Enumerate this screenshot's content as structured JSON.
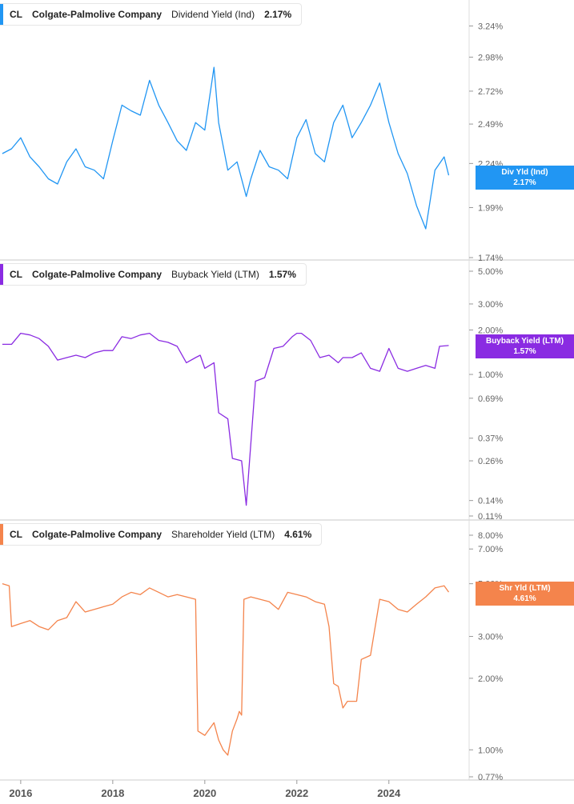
{
  "colors": {
    "dividend": "#2196f3",
    "buyback": "#8a2be2",
    "shareholder": "#f4844c",
    "axis": "#666666",
    "separator": "#c8c8c8"
  },
  "panels": [
    {
      "ticker": "CL",
      "company": "Colgate-Palmolive Company",
      "metric": "Dividend Yield (Ind)",
      "value": "2.17%",
      "badge_label": "Div Yld (Ind)",
      "badge_value": "2.17%",
      "color_key": "dividend"
    },
    {
      "ticker": "CL",
      "company": "Colgate-Palmolive Company",
      "metric": "Buyback Yield (LTM)",
      "value": "1.57%",
      "badge_label": "Buyback Yield (LTM)",
      "badge_value": "1.57%",
      "color_key": "buyback"
    },
    {
      "ticker": "CL",
      "company": "Colgate-Palmolive Company",
      "metric": "Shareholder Yield (LTM)",
      "value": "4.61%",
      "badge_label": "Shr Yld (LTM)",
      "badge_value": "4.61%",
      "color_key": "shareholder"
    }
  ],
  "chart_data": [
    {
      "type": "line",
      "series": [
        {
          "name": "Dividend Yield (Ind)",
          "x": [
            2015.6,
            2015.8,
            2016.0,
            2016.2,
            2016.4,
            2016.6,
            2016.8,
            2017.0,
            2017.2,
            2017.4,
            2017.6,
            2017.8,
            2018.0,
            2018.2,
            2018.4,
            2018.6,
            2018.8,
            2019.0,
            2019.2,
            2019.4,
            2019.6,
            2019.8,
            2020.0,
            2020.2,
            2020.3,
            2020.5,
            2020.7,
            2020.9,
            2021.0,
            2021.2,
            2021.4,
            2021.6,
            2021.8,
            2022.0,
            2022.2,
            2022.4,
            2022.6,
            2022.8,
            2023.0,
            2023.2,
            2023.4,
            2023.6,
            2023.8,
            2024.0,
            2024.2,
            2024.4,
            2024.6,
            2024.8,
            2025.0,
            2025.2,
            2025.3
          ],
          "values": [
            2.3,
            2.33,
            2.4,
            2.28,
            2.22,
            2.15,
            2.12,
            2.25,
            2.33,
            2.22,
            2.2,
            2.15,
            2.38,
            2.62,
            2.58,
            2.55,
            2.8,
            2.62,
            2.5,
            2.38,
            2.32,
            2.5,
            2.45,
            2.9,
            2.5,
            2.2,
            2.25,
            2.05,
            2.15,
            2.32,
            2.22,
            2.2,
            2.15,
            2.4,
            2.52,
            2.3,
            2.25,
            2.5,
            2.62,
            2.4,
            2.5,
            2.62,
            2.78,
            2.5,
            2.3,
            2.18,
            2.0,
            1.88,
            2.2,
            2.28,
            2.17
          ]
        }
      ],
      "y_ticks": [
        "3.24%",
        "2.98%",
        "2.72%",
        "2.49%",
        "2.24%",
        "1.99%",
        "1.74%"
      ],
      "y_tick_values": [
        3.24,
        2.98,
        2.72,
        2.49,
        2.24,
        1.99,
        1.74
      ],
      "ylim": [
        1.74,
        3.4
      ],
      "scale": "log"
    },
    {
      "type": "line",
      "series": [
        {
          "name": "Buyback Yield (LTM)",
          "x": [
            2015.6,
            2015.8,
            2016.0,
            2016.2,
            2016.4,
            2016.6,
            2016.8,
            2017.0,
            2017.2,
            2017.4,
            2017.6,
            2017.8,
            2018.0,
            2018.2,
            2018.4,
            2018.6,
            2018.8,
            2019.0,
            2019.2,
            2019.4,
            2019.6,
            2019.8,
            2019.9,
            2020.0,
            2020.2,
            2020.3,
            2020.5,
            2020.6,
            2020.8,
            2020.9,
            2021.1,
            2021.3,
            2021.5,
            2021.7,
            2021.9,
            2022.0,
            2022.1,
            2022.3,
            2022.5,
            2022.7,
            2022.9,
            2023.0,
            2023.2,
            2023.4,
            2023.6,
            2023.8,
            2024.0,
            2024.2,
            2024.4,
            2024.6,
            2024.8,
            2025.0,
            2025.1,
            2025.3
          ],
          "values": [
            1.6,
            1.6,
            1.9,
            1.85,
            1.75,
            1.55,
            1.25,
            1.3,
            1.35,
            1.3,
            1.4,
            1.45,
            1.45,
            1.8,
            1.75,
            1.85,
            1.9,
            1.7,
            1.65,
            1.55,
            1.2,
            1.3,
            1.35,
            1.1,
            1.2,
            0.55,
            0.5,
            0.27,
            0.26,
            0.13,
            0.9,
            0.95,
            1.5,
            1.55,
            1.8,
            1.9,
            1.9,
            1.7,
            1.3,
            1.35,
            1.2,
            1.3,
            1.3,
            1.4,
            1.1,
            1.05,
            1.5,
            1.1,
            1.05,
            1.1,
            1.15,
            1.1,
            1.55,
            1.57
          ]
        }
      ],
      "y_ticks": [
        "5.00%",
        "3.00%",
        "2.00%",
        "1.00%",
        "0.69%",
        "0.37%",
        "0.26%",
        "0.14%",
        "0.11%"
      ],
      "y_tick_values": [
        5.0,
        3.0,
        2.0,
        1.0,
        0.69,
        0.37,
        0.26,
        0.14,
        0.11
      ],
      "ylim": [
        0.11,
        5.0
      ],
      "scale": "log"
    },
    {
      "type": "line",
      "series": [
        {
          "name": "Shareholder Yield (LTM)",
          "x": [
            2015.6,
            2015.75,
            2015.8,
            2016.0,
            2016.2,
            2016.4,
            2016.6,
            2016.8,
            2017.0,
            2017.2,
            2017.4,
            2017.6,
            2017.8,
            2018.0,
            2018.2,
            2018.4,
            2018.6,
            2018.8,
            2019.0,
            2019.2,
            2019.4,
            2019.6,
            2019.8,
            2019.85,
            2020.0,
            2020.2,
            2020.3,
            2020.4,
            2020.5,
            2020.6,
            2020.7,
            2020.75,
            2020.8,
            2020.85,
            2021.0,
            2021.2,
            2021.4,
            2021.6,
            2021.8,
            2022.0,
            2022.2,
            2022.4,
            2022.6,
            2022.7,
            2022.8,
            2022.9,
            2023.0,
            2023.1,
            2023.3,
            2023.4,
            2023.6,
            2023.8,
            2024.0,
            2024.2,
            2024.4,
            2024.6,
            2024.8,
            2025.0,
            2025.2,
            2025.3
          ],
          "values": [
            5.0,
            4.9,
            3.3,
            3.4,
            3.5,
            3.3,
            3.2,
            3.5,
            3.6,
            4.2,
            3.8,
            3.9,
            4.0,
            4.1,
            4.4,
            4.6,
            4.5,
            4.8,
            4.6,
            4.4,
            4.5,
            4.4,
            4.3,
            1.2,
            1.15,
            1.3,
            1.1,
            1.0,
            0.95,
            1.2,
            1.35,
            1.45,
            1.4,
            4.3,
            4.4,
            4.3,
            4.2,
            3.9,
            4.6,
            4.5,
            4.4,
            4.2,
            4.1,
            3.3,
            1.9,
            1.85,
            1.5,
            1.6,
            1.6,
            2.4,
            2.5,
            4.3,
            4.2,
            3.9,
            3.8,
            4.1,
            4.4,
            4.8,
            4.9,
            4.61
          ]
        }
      ],
      "y_ticks": [
        "8.00%",
        "7.00%",
        "5.00%",
        "3.00%",
        "2.00%",
        "1.00%",
        "0.77%"
      ],
      "y_tick_values": [
        8.0,
        7.0,
        5.0,
        3.0,
        2.0,
        1.0,
        0.77
      ],
      "ylim": [
        0.77,
        8.0
      ],
      "scale": "log"
    }
  ],
  "x_axis": {
    "ticks": [
      "2016",
      "2018",
      "2020",
      "2022",
      "2024"
    ],
    "tick_values": [
      2016,
      2018,
      2020,
      2022,
      2024
    ],
    "xlim": [
      2015.55,
      2025.5
    ]
  }
}
